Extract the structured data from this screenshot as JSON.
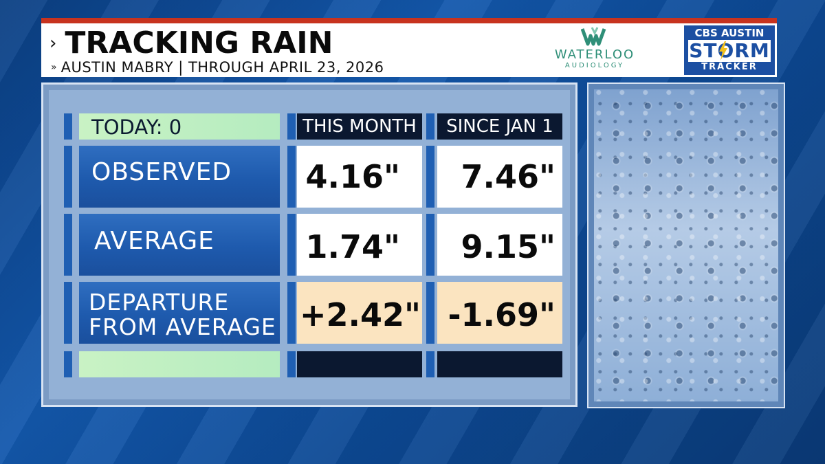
{
  "header": {
    "title": "TRACKING RAIN",
    "subtitle": "AUSTIN MABRY | THROUGH APRIL 23, 2026",
    "sponsor_name": "WATERLOO",
    "sponsor_sub": "AUDIOLOGY",
    "brand_top": "CBS AUSTIN",
    "brand_main": "STORM",
    "brand_bottom": "TRACKER"
  },
  "table": {
    "today_label": "TODAY: 0",
    "columns": [
      "THIS MONTH",
      "SINCE JAN 1"
    ],
    "rows": [
      {
        "label": "OBSERVED",
        "this_month": "4.16\"",
        "since_jan1": "7.46\""
      },
      {
        "label": "AVERAGE",
        "this_month": "1.74\"",
        "since_jan1": "9.15\""
      },
      {
        "label_line1": "DEPARTURE",
        "label_line2": "FROM AVERAGE",
        "this_month": "+2.42\"",
        "since_jan1": "-1.69\""
      }
    ]
  },
  "colors": {
    "header_accent": "#c7331f",
    "label_blue": "#1e5aad",
    "today_green": "#c9f2c4",
    "departure_tan": "#fbe4c0",
    "header_dark": "#0b1830"
  }
}
